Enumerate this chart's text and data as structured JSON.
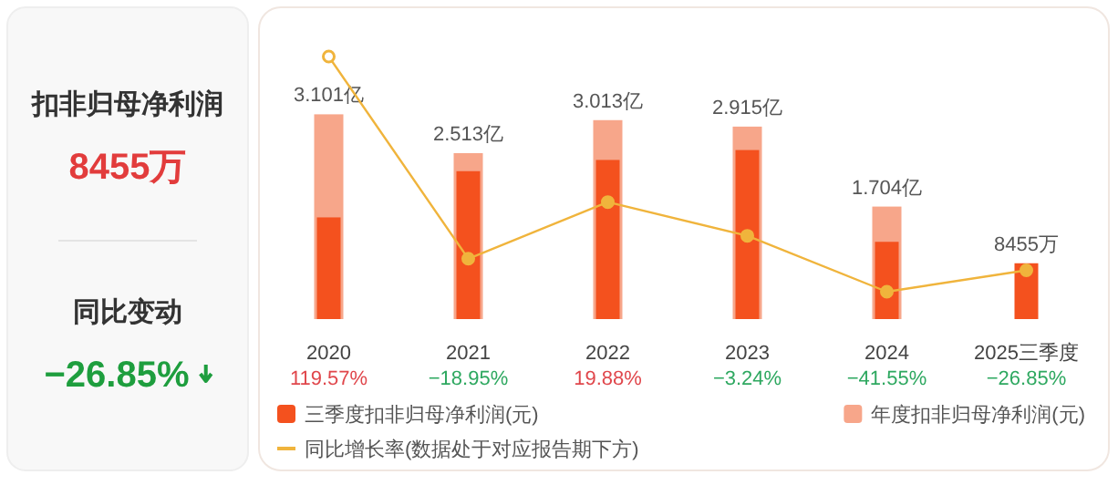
{
  "chart_data": [
    {
      "type": "other",
      "annotations": [
        "扣非归母净利润",
        "8455万",
        "同比变动",
        "−26.85%"
      ]
    },
    {
      "type": "bar",
      "categories": [
        "2020",
        "2021",
        "2022",
        "2023",
        "2024",
        "2025三季度"
      ],
      "series": [
        {
          "name": "年度扣非归母净利润(元)",
          "color": "#f7a68a",
          "values": [
            3.101,
            2.513,
            3.013,
            2.915,
            1.704,
            null
          ],
          "value_labels": [
            "3.101亿",
            "2.513亿",
            "3.013亿",
            "2.915亿",
            "1.704亿",
            null
          ]
        },
        {
          "name": "三季度扣非归母净利润(元)",
          "color": "#f4511e",
          "values": [
            1.54,
            2.24,
            2.41,
            2.56,
            1.17,
            0.8455
          ]
        },
        {
          "name": "同比增长率(数据处于对应报告期下方)",
          "type": "line",
          "axis": "y2",
          "color": "#f0b43c",
          "marker": "circle",
          "values": [
            119.57,
            -18.95,
            19.88,
            -3.24,
            -41.55,
            -26.85
          ],
          "value_labels": [
            "119.57%",
            "−18.95%",
            "19.88%",
            "−3.24%",
            "−41.55%",
            "−26.85%"
          ]
        }
      ],
      "annotations": [
        {
          "text": "8455万",
          "x": "2025三季度",
          "y": 0.8455
        }
      ],
      "legend": "bottom",
      "tick_labels": "x"
    }
  ]
}
